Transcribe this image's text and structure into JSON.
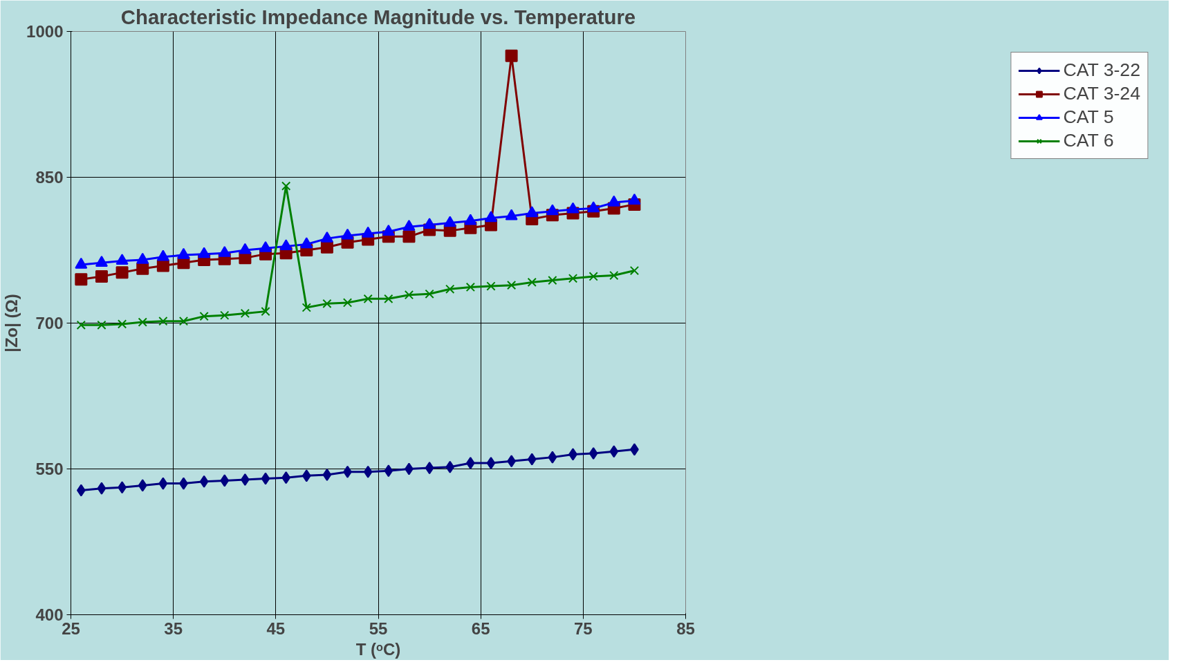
{
  "chart_data": {
    "type": "line",
    "title": "Characteristic Impedance Magnitude vs. Temperature",
    "xlabel": "T (ᵒC)",
    "ylabel": "|Zo| (Ω)",
    "x": [
      26,
      28,
      30,
      32,
      34,
      36,
      38,
      40,
      42,
      44,
      46,
      48,
      50,
      52,
      54,
      56,
      58,
      60,
      62,
      64,
      66,
      68,
      70,
      72,
      74,
      76,
      78,
      80
    ],
    "series": [
      {
        "name": "CAT 3-22",
        "color": "#000080",
        "marker": "diamond",
        "values": [
          528,
          530,
          531,
          533,
          535,
          535,
          537,
          538,
          539,
          540,
          541,
          543,
          544,
          547,
          547,
          548,
          550,
          551,
          552,
          556,
          556,
          558,
          560,
          562,
          565,
          566,
          568,
          570
        ]
      },
      {
        "name": "CAT 3-24",
        "color": "#800000",
        "marker": "square",
        "values": [
          745,
          748,
          752,
          756,
          759,
          762,
          765,
          766,
          767,
          771,
          772,
          775,
          778,
          783,
          786,
          789,
          789,
          796,
          795,
          798,
          801,
          975,
          807,
          811,
          813,
          815,
          818,
          822
        ]
      },
      {
        "name": "CAT 5",
        "color": "#0000ff",
        "marker": "triangle",
        "values": [
          760,
          762,
          764,
          765,
          768,
          770,
          771,
          772,
          775,
          777,
          779,
          781,
          787,
          790,
          792,
          794,
          799,
          801,
          803,
          805,
          808,
          810,
          813,
          815,
          817,
          818,
          824,
          826
        ]
      },
      {
        "name": "CAT 6",
        "color": "#008000",
        "marker": "cross",
        "values": [
          698,
          698,
          699,
          701,
          702,
          702,
          707,
          708,
          710,
          712,
          841,
          716,
          720,
          721,
          725,
          725,
          729,
          730,
          735,
          737,
          738,
          739,
          742,
          744,
          746,
          748,
          749,
          754
        ]
      }
    ],
    "xlim": [
      25,
      85
    ],
    "xticks": [
      25,
      35,
      45,
      55,
      65,
      75,
      85
    ],
    "ylim": [
      400,
      1000
    ],
    "yticks": [
      400,
      550,
      700,
      850,
      1000
    ],
    "grid": true,
    "legend": "right",
    "line_style": "solid"
  }
}
